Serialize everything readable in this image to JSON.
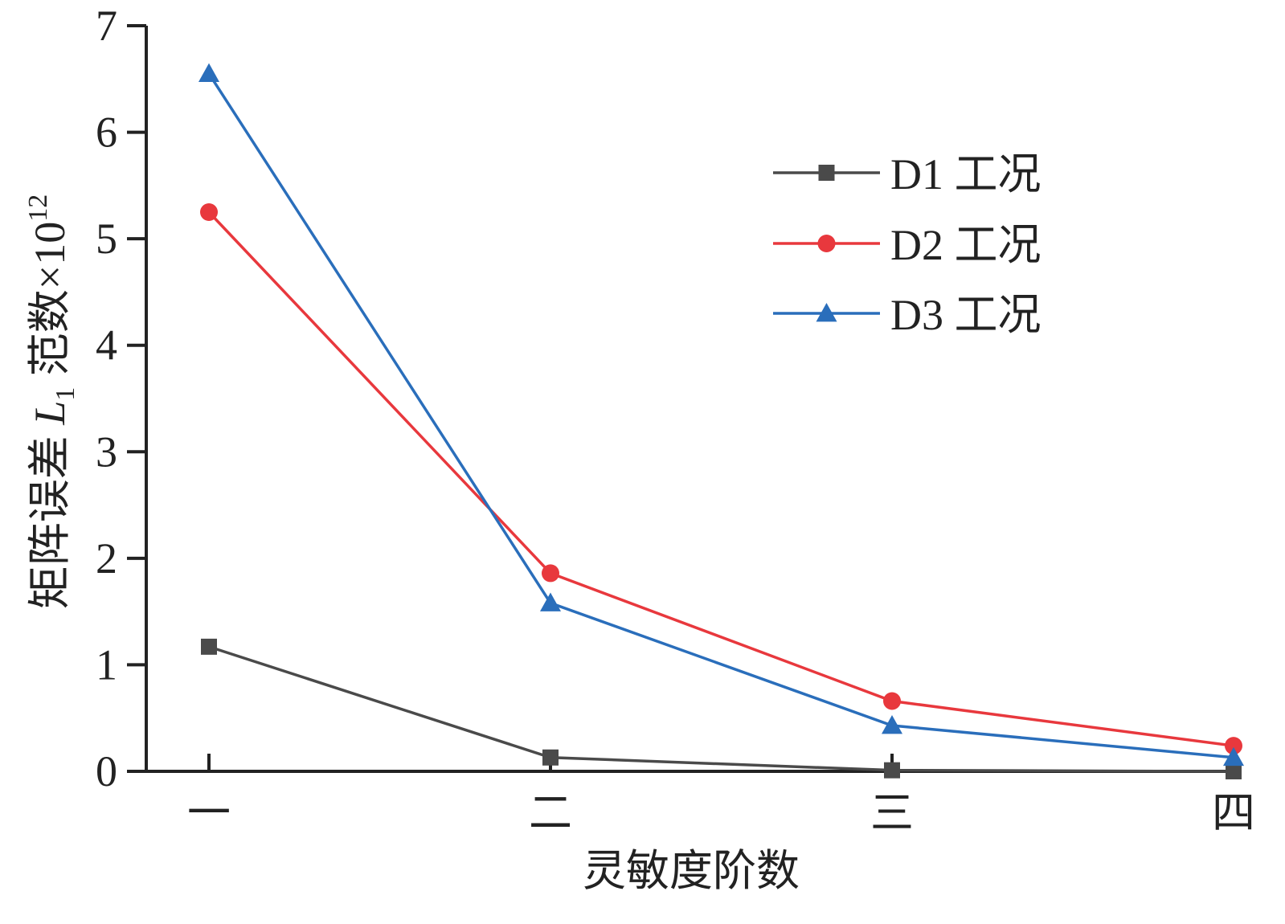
{
  "chart_data": {
    "type": "line",
    "categories": [
      "一",
      "二",
      "三",
      "四"
    ],
    "xlabel": "灵敏度阶数",
    "ylabel_parts": {
      "main": "矩阵误差",
      "var": "L",
      "sub": "1",
      "suffix": "范数×10",
      "exp": "12"
    },
    "ylim": [
      0,
      7
    ],
    "yticks": [
      0,
      1,
      2,
      3,
      4,
      5,
      6,
      7
    ],
    "legend_position": "top-right",
    "grid": false,
    "series": [
      {
        "name": "D1 工况",
        "color": "#4a4a4a",
        "marker": "square",
        "values": [
          1.17,
          0.13,
          0.01,
          0.0
        ]
      },
      {
        "name": "D2 工况",
        "color": "#e8383d",
        "marker": "circle",
        "values": [
          5.25,
          1.86,
          0.66,
          0.24
        ]
      },
      {
        "name": "D3 工况",
        "color": "#2a6ebb",
        "marker": "triangle",
        "values": [
          6.55,
          1.58,
          0.43,
          0.13
        ]
      }
    ]
  }
}
